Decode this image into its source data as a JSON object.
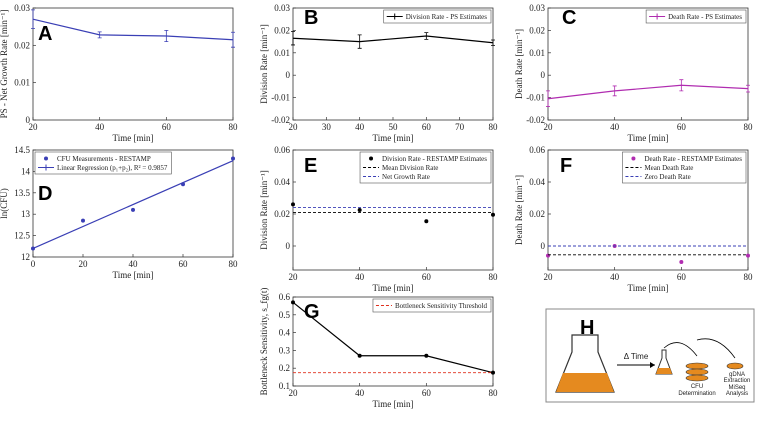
{
  "chart_data": [
    {
      "type": "line",
      "panel": "A",
      "xlabel": "Time [min]",
      "ylabel": "PS - Net Growth Rate [min⁻¹]",
      "x": [
        20,
        40,
        60,
        80
      ],
      "xlim": [
        20,
        80
      ],
      "xticks": [
        20,
        40,
        60,
        80
      ],
      "ylim": [
        0,
        0.03
      ],
      "yticks": [
        0,
        0.01,
        0.02,
        0.03
      ],
      "series": [
        {
          "color": "#3a3fb5",
          "values": [
            0.027,
            0.0228,
            0.0225,
            0.0215
          ],
          "errors": [
            0.0025,
            0.0008,
            0.0015,
            0.002
          ]
        }
      ]
    },
    {
      "type": "line",
      "panel": "B",
      "xlabel": "Time [min]",
      "ylabel": "Division Rate [min⁻¹]",
      "legend": "northeast",
      "x": [
        20,
        40,
        60,
        80
      ],
      "xlim": [
        20,
        80
      ],
      "xticks": [
        20,
        30,
        40,
        50,
        60,
        70,
        80
      ],
      "ylim": [
        -0.02,
        0.03
      ],
      "yticks": [
        -0.02,
        -0.01,
        0,
        0.01,
        0.02,
        0.03
      ],
      "series": [
        {
          "name": "Division Rate - PS Estimates",
          "color": "#000000",
          "values": [
            0.0165,
            0.015,
            0.0175,
            0.0145
          ],
          "errors": [
            0.003,
            0.003,
            0.0015,
            0.0012
          ]
        }
      ]
    },
    {
      "type": "line",
      "panel": "C",
      "xlabel": "Time [min]",
      "ylabel": "Death Rate [min⁻¹]",
      "legend": "northeast",
      "x": [
        20,
        40,
        60,
        80
      ],
      "xlim": [
        20,
        80
      ],
      "xticks": [
        20,
        40,
        60,
        80
      ],
      "ylim": [
        -0.02,
        0.03
      ],
      "yticks": [
        -0.02,
        -0.01,
        0,
        0.01,
        0.02,
        0.03
      ],
      "series": [
        {
          "name": "Death Rate - PS Estimates",
          "color": "#b02cb0",
          "values": [
            -0.0105,
            -0.007,
            -0.0045,
            -0.006
          ],
          "errors": [
            0.0035,
            0.0022,
            0.0025,
            0.0015
          ]
        }
      ]
    },
    {
      "type": "scatter",
      "panel": "D",
      "xlabel": "Time [min]",
      "ylabel": "ln(CFU)",
      "legend": "northwest",
      "x": [
        0,
        20,
        40,
        60,
        80
      ],
      "xlim": [
        0,
        80
      ],
      "xticks": [
        0,
        20,
        40,
        60,
        80
      ],
      "ylim": [
        12,
        14.5
      ],
      "yticks": [
        12,
        12.5,
        13,
        13.5,
        14,
        14.5
      ],
      "series": [
        {
          "name": "CFU Measurements - RESTAMP",
          "color": "#3a3fb5",
          "values": [
            12.2,
            12.85,
            13.1,
            13.7,
            14.3
          ],
          "marker": true
        },
        {
          "name": "Linear Regression (p₁+p₂), R² = 0.9857",
          "color": "#3a3fb5",
          "x": [
            0,
            80
          ],
          "values": [
            12.2,
            14.25
          ],
          "line": true
        }
      ]
    },
    {
      "type": "scatter",
      "panel": "E",
      "xlabel": "Time [min]",
      "ylabel": "Division Rate [min⁻¹]",
      "legend": "northeast",
      "x": [
        20,
        40,
        60,
        80
      ],
      "xlim": [
        20,
        80
      ],
      "xticks": [
        20,
        40,
        60,
        80
      ],
      "ylim": [
        -0.015,
        0.06
      ],
      "yticks": [
        0,
        0.02,
        0.04,
        0.06
      ],
      "series": [
        {
          "name": "Division Rate - RESTAMP Estimates",
          "color": "#000000",
          "values": [
            0.026,
            0.0225,
            0.0155,
            0.0195
          ],
          "marker": true
        }
      ],
      "reference_lines": [
        {
          "name": "Mean Division Rate",
          "color": "#000000",
          "value": 0.021
        },
        {
          "name": "Net Growth Rate",
          "color": "#3a3fb5",
          "value": 0.024
        }
      ]
    },
    {
      "type": "scatter",
      "panel": "F",
      "xlabel": "Time [min]",
      "ylabel": "Death Rate [min⁻¹]",
      "legend": "northeast",
      "x": [
        20,
        40,
        60,
        80
      ],
      "xlim": [
        20,
        80
      ],
      "xticks": [
        20,
        40,
        60,
        80
      ],
      "ylim": [
        -0.015,
        0.06
      ],
      "yticks": [
        0,
        0.02,
        0.04,
        0.06
      ],
      "series": [
        {
          "name": "Death Rate - RESTAMP Estimates",
          "color": "#b02cb0",
          "values": [
            -0.006,
            0,
            -0.01,
            -0.006
          ],
          "marker": true
        }
      ],
      "reference_lines": [
        {
          "name": "Mean Death Rate",
          "color": "#000000",
          "value": -0.0055
        },
        {
          "name": "Zero Death Rate",
          "color": "#3a3fb5",
          "value": 0
        }
      ]
    },
    {
      "type": "line",
      "panel": "G",
      "xlabel": "Time [min]",
      "ylabel": "Bottleneck Sensitivity, s_fg(t)",
      "legend": "northeast",
      "x": [
        20,
        40,
        60,
        80
      ],
      "xlim": [
        20,
        80
      ],
      "xticks": [
        20,
        40,
        60,
        80
      ],
      "ylim": [
        0.1,
        0.6
      ],
      "yticks": [
        0.1,
        0.2,
        0.3,
        0.4,
        0.5,
        0.6
      ],
      "series": [
        {
          "color": "#000000",
          "values": [
            0.57,
            0.27,
            0.27,
            0.175
          ],
          "marker": true,
          "line": true
        }
      ],
      "reference_lines": [
        {
          "name": "Bottleneck Sensitivity Threshold",
          "color": "#e0301e",
          "value": 0.175
        }
      ]
    }
  ],
  "diagram": {
    "panel": "H",
    "arrow_label": "Δ Time",
    "cfu_label": [
      "CFU",
      "Determination"
    ],
    "dna_label": [
      "gDNA",
      "Extraction",
      "MiSeq",
      "Analysis"
    ]
  }
}
